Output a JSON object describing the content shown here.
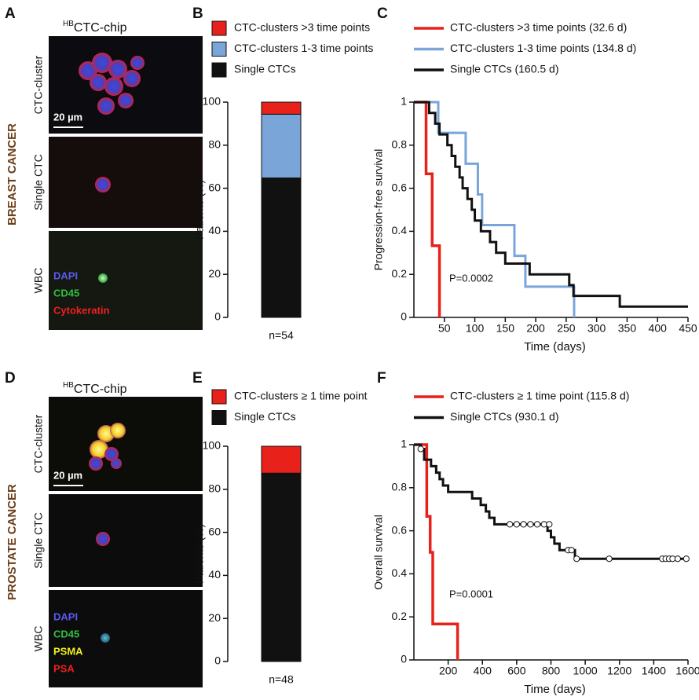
{
  "panels": {
    "A": {
      "letter": "A",
      "title_sup": "HB",
      "title": "CTC-chip",
      "rows": [
        "CTC-cluster",
        "Single CTC",
        "WBC"
      ],
      "scale": "20 µm",
      "stains": [
        "DAPI",
        "CD45",
        "Cytokeratin"
      ],
      "side_label": "BREAST CANCER"
    },
    "D": {
      "letter": "D",
      "title_sup": "HB",
      "title": "CTC-chip",
      "rows": [
        "CTC-cluster",
        "Single CTC",
        "WBC"
      ],
      "scale": "20 µm",
      "stains": [
        "DAPI",
        "CD45",
        "PSMA",
        "PSA"
      ],
      "side_label": "PROSTATE CANCER"
    }
  },
  "chart_data": [
    {
      "type": "stacked_bar",
      "letter": "B",
      "categories": [
        "n=54"
      ],
      "y_label": "Patients (%)",
      "ylim": [
        0,
        100
      ],
      "yticks": [
        0,
        20,
        40,
        60,
        80,
        100
      ],
      "series": [
        {
          "name": "CTC-clusters >3 time points",
          "color": "#e8211b",
          "values": [
            5.6
          ]
        },
        {
          "name": "CTC-clusters 1-3 time points",
          "color": "#7aa5d8",
          "values": [
            29.6
          ]
        },
        {
          "name": "Single CTCs",
          "color": "#111111",
          "values": [
            64.8
          ]
        }
      ]
    },
    {
      "type": "step_line",
      "letter": "C",
      "x_label": "Time (days)",
      "y_label": "Progression-free survival",
      "annotation": "P=0.0002",
      "xlim": [
        0,
        450
      ],
      "xticks": [
        50,
        100,
        150,
        200,
        250,
        300,
        350,
        400,
        450
      ],
      "ylim": [
        0,
        1
      ],
      "yticks": [
        0,
        0.2,
        0.4,
        0.6,
        0.8,
        1
      ],
      "series": [
        {
          "name": "CTC-clusters >3 time points (32.6 d)",
          "color": "#e8211b",
          "x": [
            0,
            20,
            20,
            30,
            30,
            42,
            42
          ],
          "y": [
            1,
            1,
            0.667,
            0.667,
            0.333,
            0.333,
            0
          ]
        },
        {
          "name": "CTC-clusters 1-3 time points (134.8 d)",
          "color": "#7aa5d8",
          "x": [
            0,
            40,
            40,
            85,
            85,
            105,
            105,
            112,
            112,
            165,
            165,
            183,
            183,
            263,
            263
          ],
          "y": [
            1,
            1,
            0.857,
            0.857,
            0.714,
            0.714,
            0.571,
            0.571,
            0.429,
            0.429,
            0.286,
            0.286,
            0.143,
            0.143,
            0
          ]
        },
        {
          "name": "Single CTCs (160.5 d)",
          "color": "#111111",
          "x": [
            0,
            25,
            25,
            35,
            35,
            42,
            42,
            55,
            55,
            62,
            62,
            68,
            68,
            75,
            75,
            80,
            80,
            88,
            88,
            95,
            95,
            100,
            100,
            110,
            110,
            125,
            125,
            135,
            135,
            150,
            150,
            190,
            190,
            255,
            255,
            262,
            262,
            338,
            338,
            450
          ],
          "y": [
            1,
            1,
            0.95,
            0.95,
            0.9,
            0.9,
            0.85,
            0.85,
            0.8,
            0.8,
            0.75,
            0.75,
            0.7,
            0.7,
            0.65,
            0.65,
            0.6,
            0.6,
            0.55,
            0.55,
            0.5,
            0.5,
            0.45,
            0.45,
            0.4,
            0.4,
            0.35,
            0.35,
            0.3,
            0.3,
            0.25,
            0.25,
            0.2,
            0.2,
            0.15,
            0.15,
            0.1,
            0.1,
            0.05,
            0.05
          ]
        }
      ]
    },
    {
      "type": "stacked_bar",
      "letter": "E",
      "categories": [
        "n=48"
      ],
      "y_label": "Patients (%)",
      "ylim": [
        0,
        100
      ],
      "yticks": [
        0,
        20,
        40,
        60,
        80,
        100
      ],
      "series": [
        {
          "name": "CTC-clusters ≥ 1 time point",
          "color": "#e8211b",
          "values": [
            12.5
          ]
        },
        {
          "name": "Single CTCs",
          "color": "#111111",
          "values": [
            87.5
          ]
        }
      ]
    },
    {
      "type": "step_line",
      "letter": "F",
      "x_label": "Time (days)",
      "y_label": "Overall survival",
      "annotation": "P=0.0001",
      "xlim": [
        0,
        1600
      ],
      "xticks": [
        200,
        400,
        600,
        800,
        1000,
        1200,
        1400,
        1600
      ],
      "ylim": [
        0,
        1
      ],
      "yticks": [
        0,
        0.2,
        0.4,
        0.6,
        0.8,
        1
      ],
      "series": [
        {
          "name": "CTC-clusters ≥ 1 time point (115.8 d)",
          "color": "#e8211b",
          "x": [
            0,
            75,
            75,
            95,
            95,
            110,
            110,
            255,
            255
          ],
          "y": [
            1,
            1,
            0.667,
            0.667,
            0.5,
            0.5,
            0.167,
            0.167,
            0
          ]
        },
        {
          "name": "Single CTCs (930.1 d)",
          "color": "#111111",
          "x": [
            0,
            40,
            40,
            60,
            60,
            100,
            100,
            130,
            130,
            150,
            150,
            170,
            170,
            200,
            200,
            340,
            340,
            390,
            390,
            420,
            420,
            440,
            440,
            470,
            470,
            780,
            780,
            800,
            800,
            820,
            820,
            850,
            850,
            940,
            940,
            1590
          ],
          "y": [
            1,
            1,
            0.98,
            0.98,
            0.93,
            0.93,
            0.9,
            0.9,
            0.87,
            0.87,
            0.84,
            0.84,
            0.81,
            0.81,
            0.78,
            0.78,
            0.75,
            0.75,
            0.72,
            0.72,
            0.69,
            0.69,
            0.66,
            0.66,
            0.63,
            0.63,
            0.6,
            0.6,
            0.57,
            0.57,
            0.54,
            0.54,
            0.51,
            0.51,
            0.47,
            0.47
          ],
          "censored": {
            "x": [
              40,
              560,
              600,
              640,
              680,
              720,
              760,
              790,
              900,
              920,
              950,
              1140,
              1450,
              1470,
              1490,
              1510,
              1540,
              1590
            ],
            "y": [
              0.98,
              0.63,
              0.63,
              0.63,
              0.63,
              0.63,
              0.63,
              0.63,
              0.51,
              0.51,
              0.47,
              0.47,
              0.47,
              0.47,
              0.47,
              0.47,
              0.47,
              0.47
            ]
          }
        }
      ]
    }
  ]
}
